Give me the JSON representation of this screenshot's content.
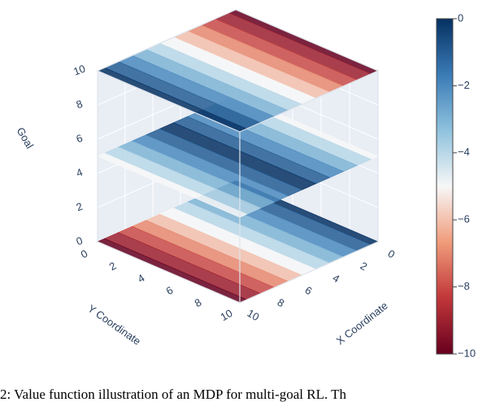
{
  "chart_data": {
    "type": "surface3d",
    "xlabel": "X Coordinate",
    "ylabel": "Y Coordinate",
    "zlabel": "Goal",
    "x": [
      0,
      1,
      2,
      3,
      4,
      5,
      6,
      7,
      8,
      9,
      10
    ],
    "xlim": [
      0,
      10
    ],
    "ylim": [
      0,
      10
    ],
    "zlim": [
      0,
      10
    ],
    "xticks": [
      0,
      2,
      4,
      6,
      8,
      10
    ],
    "yticks": [
      0,
      2,
      4,
      6,
      8,
      10
    ],
    "zticks": [
      0,
      2,
      4,
      6,
      8,
      10
    ],
    "slices": [
      {
        "goal": 0,
        "values": [
          0,
          -1,
          -2,
          -3,
          -4,
          -5,
          -6,
          -7,
          -8,
          -9,
          -10
        ]
      },
      {
        "goal": 5,
        "values": [
          -5,
          -4,
          -3,
          -2,
          -1,
          0,
          -1,
          -2,
          -3,
          -4,
          -5
        ]
      },
      {
        "goal": 10,
        "values": [
          -10,
          -9,
          -8,
          -7,
          -6,
          -5,
          -4,
          -3,
          -2,
          -1,
          0
        ]
      }
    ],
    "clim": [
      -10,
      0
    ],
    "cticks": [
      {
        "value": 0,
        "label": "0"
      },
      {
        "value": -2,
        "label": "−2"
      },
      {
        "value": -4,
        "label": "−4"
      },
      {
        "value": -6,
        "label": "−6"
      },
      {
        "value": -8,
        "label": "−8"
      },
      {
        "value": -10,
        "label": "−10"
      }
    ],
    "colorscale": [
      "#67001f",
      "#c13639",
      "#f09c7b",
      "#f7f7f7",
      "#8fc2dd",
      "#3a7bb6",
      "#053061"
    ]
  },
  "caption": "2: Value function illustration of an MDP for multi-goal RL. Th"
}
